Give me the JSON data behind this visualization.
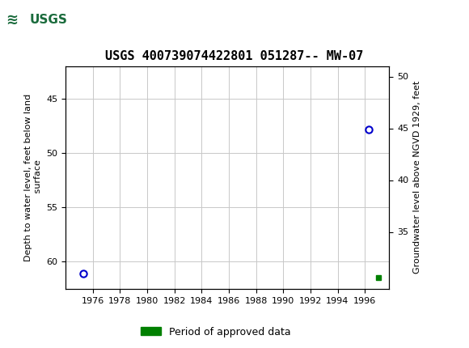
{
  "title": "USGS 400739074422801 051287-- MW-07",
  "header_color": "#1a6b3c",
  "point1_year": 1975.3,
  "point1_depth": 61.1,
  "point2_year": 1996.3,
  "point2_depth": 47.8,
  "approved_dot_year": 1997.0,
  "approved_dot_depth": 61.5,
  "xlim": [
    1974.0,
    1997.8
  ],
  "xticks": [
    1976,
    1978,
    1980,
    1982,
    1984,
    1986,
    1988,
    1990,
    1992,
    1994,
    1996
  ],
  "ylim_left_bottom": 62.5,
  "ylim_left_top": 42.0,
  "ylim_right_bottom": 29.5,
  "ylim_right_top": 51.0,
  "yticks_left": [
    45,
    50,
    55,
    60
  ],
  "yticks_right": [
    35,
    40,
    45,
    50
  ],
  "ylabel_left_lines": [
    "Depth to water level, feet below land",
    " surface"
  ],
  "ylabel_right": "Groundwater level above NGVD 1929, feet",
  "legend_label": "Period of approved data",
  "legend_color": "#008000",
  "point_color": "#0000cc",
  "grid_color": "#c8c8c8",
  "background_color": "#ffffff",
  "title_fontsize": 11,
  "axis_label_fontsize": 8,
  "tick_fontsize": 8,
  "legend_fontsize": 9
}
